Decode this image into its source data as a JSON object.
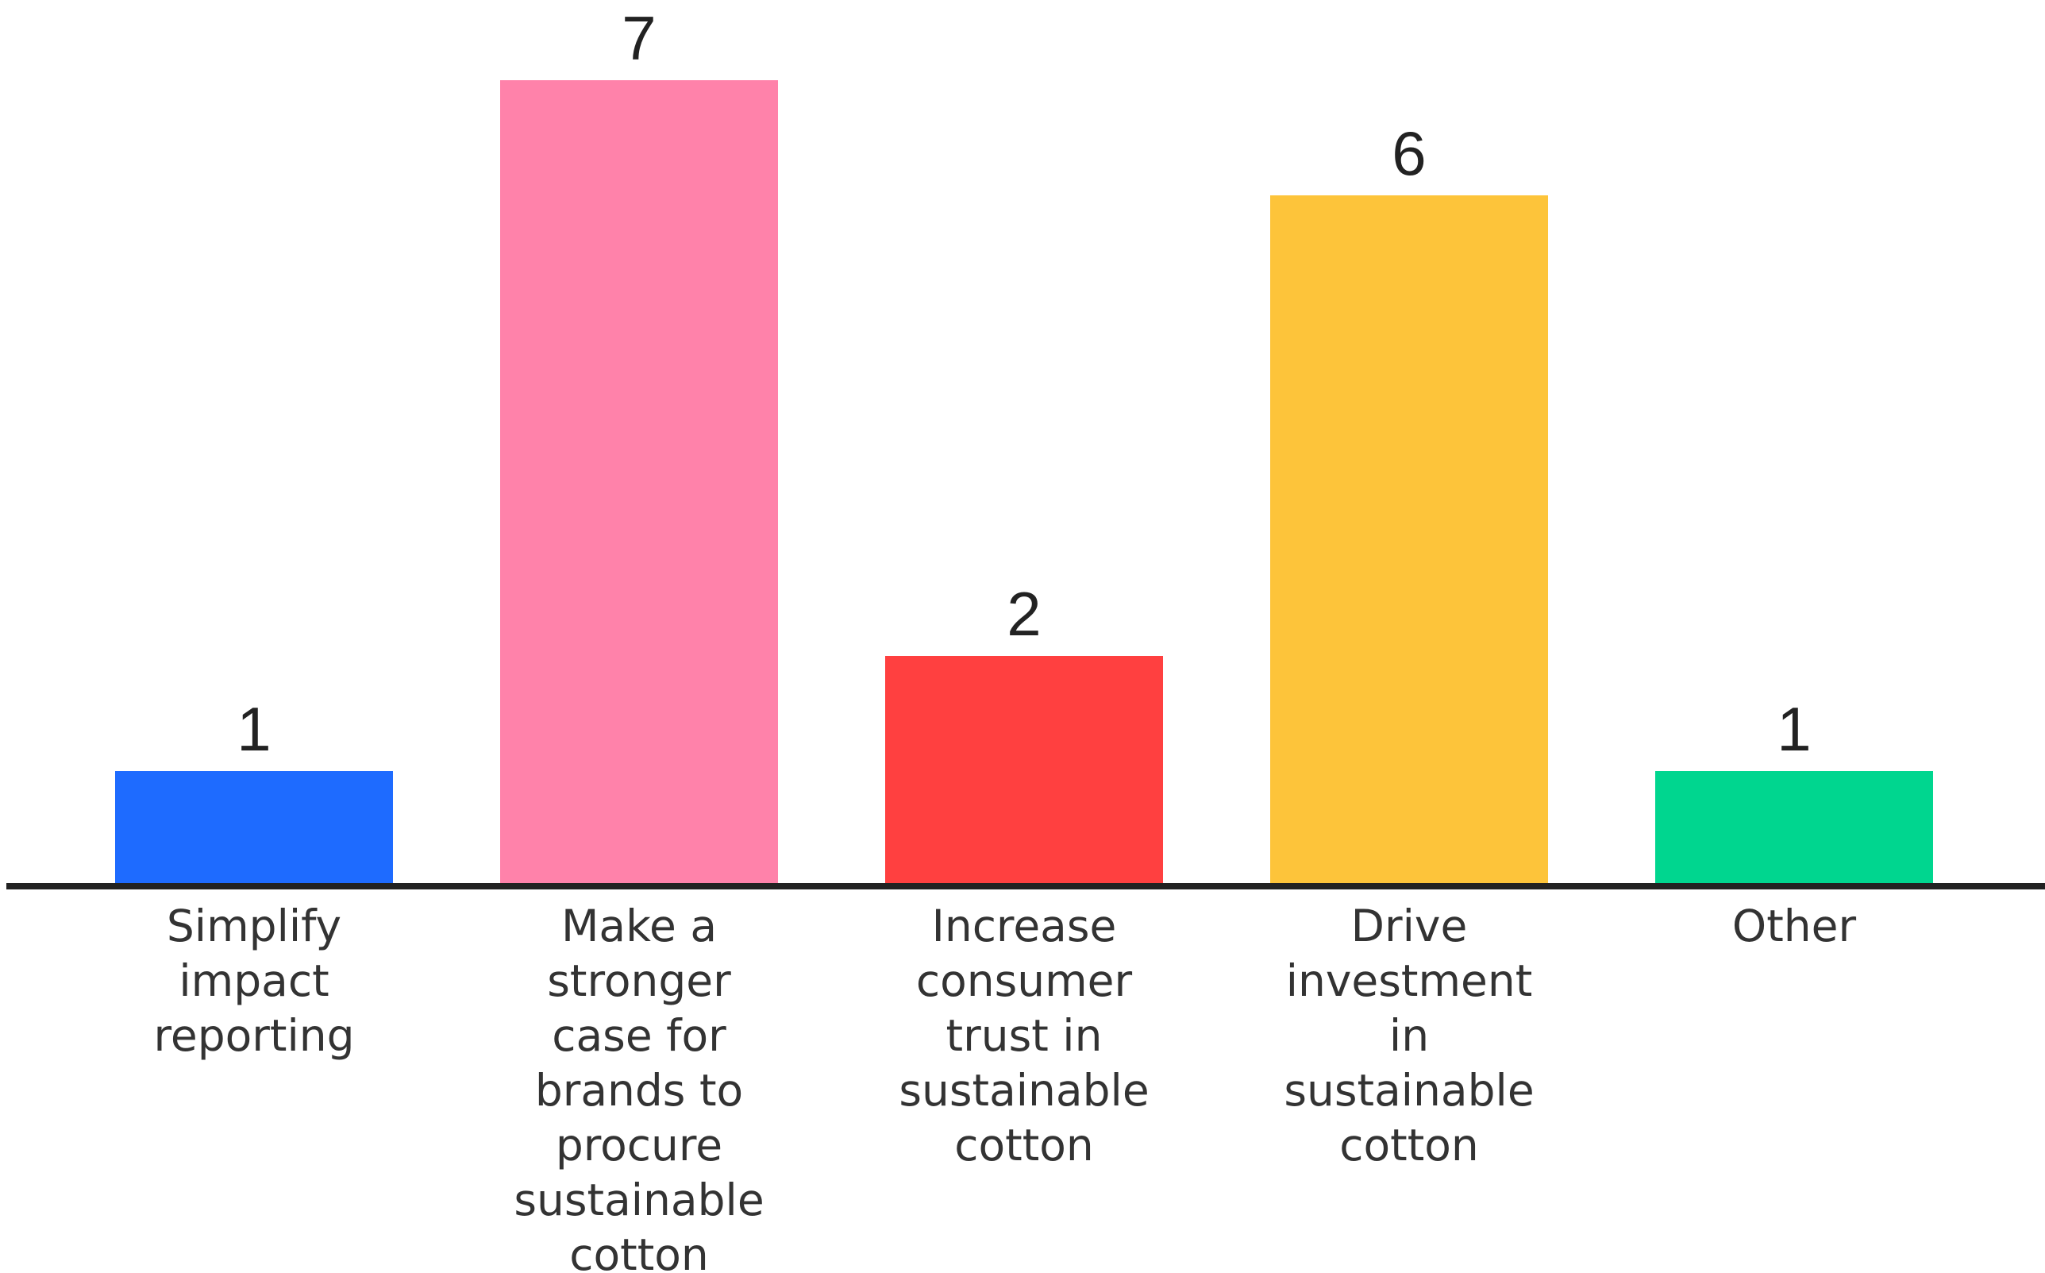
{
  "chart_data": {
    "type": "bar",
    "title": "",
    "xlabel": "",
    "ylabel": "",
    "ylim": [
      0,
      7
    ],
    "grid": false,
    "legend": "none",
    "categories": [
      "Simplify impact reporting",
      "Make a stronger case for brands to procure sustainable cotton",
      "Increase consumer trust in sustainable cotton",
      "Drive investment in sustainable cotton",
      "Other"
    ],
    "category_lines": [
      [
        "Simplify",
        "impact",
        "reporting"
      ],
      [
        "Make a",
        "stronger",
        "case for",
        "brands to",
        "procure",
        "sustainable",
        "cotton"
      ],
      [
        "Increase",
        "consumer",
        "trust in",
        "sustainable",
        "cotton"
      ],
      [
        "Drive",
        "investment",
        "in",
        "sustainable",
        "cotton"
      ],
      [
        "Other"
      ]
    ],
    "values": [
      1,
      7,
      2,
      6,
      1
    ],
    "data_labels": [
      "1",
      "7",
      "2",
      "6",
      "1"
    ],
    "colors": [
      "#1E6BFF",
      "#FF82AA",
      "#FF4040",
      "#FDC43A",
      "#00D68F"
    ],
    "axis_color": "#222222"
  }
}
